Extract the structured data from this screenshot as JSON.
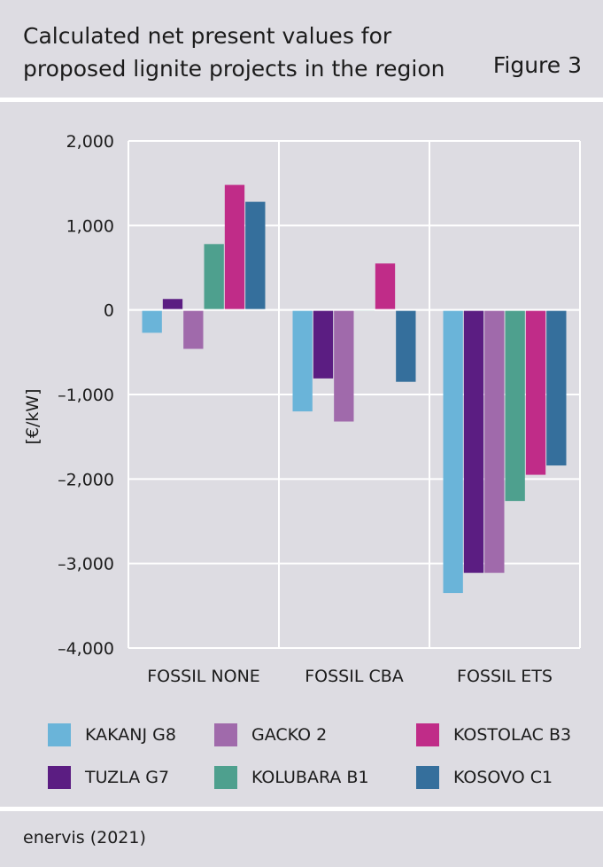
{
  "header": {
    "title_line1": "Calculated net present values for",
    "title_line2": "proposed lignite projects in the region",
    "figure_label": "Figure 3"
  },
  "source": "enervis (2021)",
  "chart_data": {
    "type": "bar",
    "categories": [
      "FOSSIL NONE",
      "FOSSIL CBA",
      "FOSSIL ETS"
    ],
    "ylabel": "[€/kW]",
    "ylim": [
      -4000,
      2000
    ],
    "yticks": [
      2000,
      1000,
      0,
      -1000,
      -2000,
      -3000,
      -4000
    ],
    "ytick_labels": [
      "2,000",
      "1,000",
      "0",
      "–1,000",
      "–2,000",
      "–3,000",
      "–4,000"
    ],
    "grid": true,
    "legend_position": "bottom",
    "series": [
      {
        "name": "KAKANJ G8",
        "color": "#6ab4d9",
        "values": [
          -270,
          -1200,
          -3350
        ]
      },
      {
        "name": "TUZLA G7",
        "color": "#5b1d82",
        "values": [
          130,
          -810,
          -3110
        ]
      },
      {
        "name": "GACKO 2",
        "color": "#a06aab",
        "values": [
          -460,
          -1320,
          -3110
        ]
      },
      {
        "name": "KOLUBARA B1",
        "color": "#4ea08e",
        "values": [
          780,
          -10,
          -2260
        ]
      },
      {
        "name": "KOSTOLAC B3",
        "color": "#c02c88",
        "values": [
          1480,
          550,
          -1950
        ]
      },
      {
        "name": "KOSOVO C1",
        "color": "#356f9c",
        "values": [
          1280,
          -850,
          -1840
        ]
      }
    ]
  }
}
